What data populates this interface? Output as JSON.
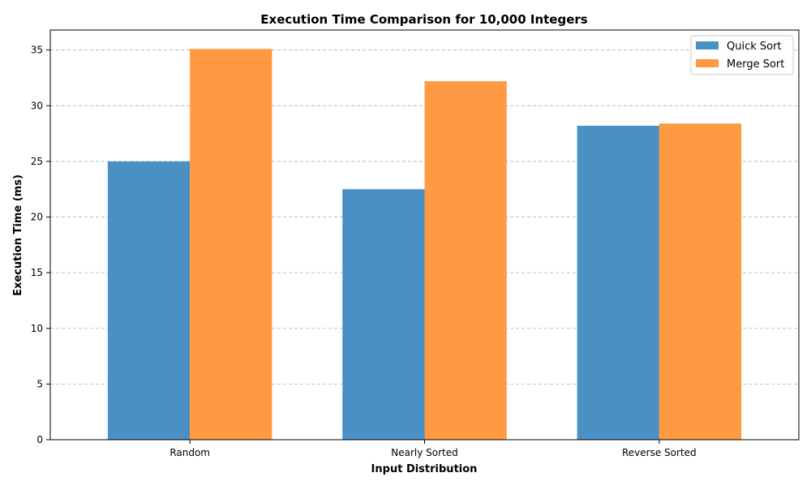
{
  "chart_data": {
    "type": "bar",
    "title": "Execution Time Comparison for 10,000 Integers",
    "xlabel": "Input Distribution",
    "ylabel": "Execution Time (ms)",
    "categories": [
      "Random",
      "Nearly Sorted",
      "Reverse Sorted"
    ],
    "series": [
      {
        "name": "Quick Sort",
        "values": [
          25.0,
          22.5,
          28.2
        ],
        "color": "#4a90c4"
      },
      {
        "name": "Merge Sort",
        "values": [
          35.1,
          32.2,
          28.4
        ],
        "color": "#ff9a42"
      }
    ],
    "ylim": [
      0,
      36.8
    ],
    "yticks": [
      0,
      5,
      10,
      15,
      20,
      25,
      30,
      35
    ],
    "grid": "horizontal dashed",
    "legend_position": "top-right"
  }
}
